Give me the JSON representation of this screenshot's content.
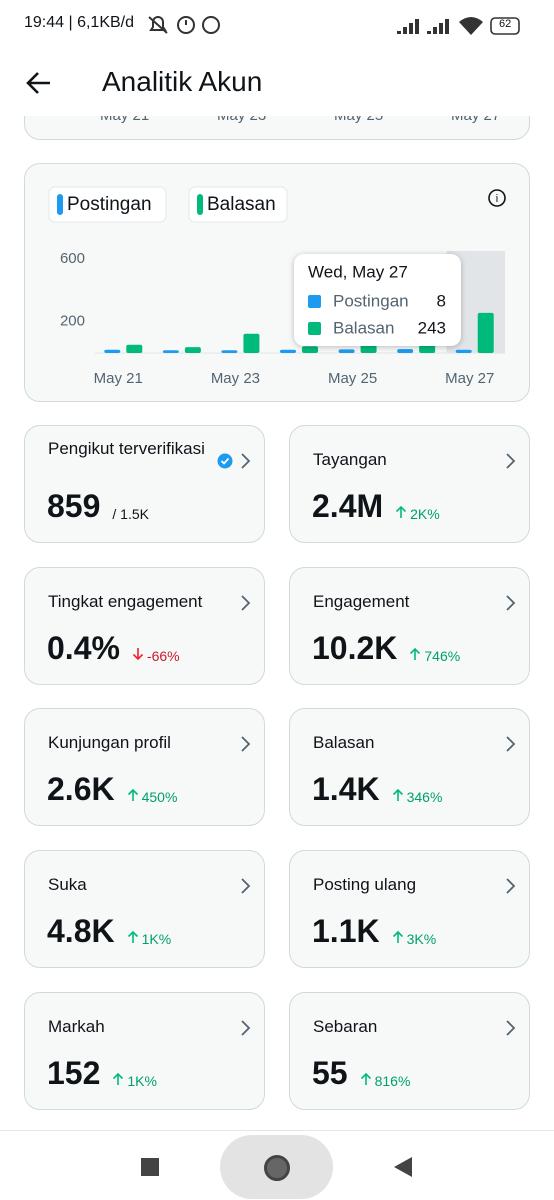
{
  "status_bar": {
    "time": "19:44 | 6,1KB/d",
    "battery": "62"
  },
  "header": {
    "title": "Analitik Akun"
  },
  "top_card": {
    "dates": [
      "May 21",
      "May 23",
      "May 25",
      "May 27"
    ]
  },
  "chart_data": {
    "type": "bar",
    "categories": [
      "May 21",
      null,
      "May 23",
      null,
      "May 25",
      null,
      "May 27"
    ],
    "series": [
      {
        "name": "Postingan",
        "color": "#1d9bf0",
        "values": [
          8,
          5,
          5,
          8,
          10,
          12,
          8
        ]
      },
      {
        "name": "Balasan",
        "color": "#00ba7c",
        "values": [
          40,
          25,
          110,
          30,
          40,
          45,
          243
        ]
      }
    ],
    "ylim": [
      0,
      650
    ],
    "yticks": [
      200,
      600
    ],
    "tooltip": {
      "title": "Wed, May 27",
      "index": 6
    }
  },
  "cards": [
    {
      "label": "Pengikut terverifikasi",
      "value": "859",
      "sub": "/ 1.5K",
      "verified": true
    },
    {
      "label": "Tayangan",
      "value": "2.4M",
      "change": "2K%",
      "direction": "up"
    },
    {
      "label": "Tingkat engagement",
      "value": "0.4%",
      "change": "-66%",
      "direction": "down"
    },
    {
      "label": "Engagement",
      "value": "10.2K",
      "change": "746%",
      "direction": "up"
    },
    {
      "label": "Kunjungan profil",
      "value": "2.6K",
      "change": "450%",
      "direction": "up"
    },
    {
      "label": "Balasan",
      "value": "1.4K",
      "change": "346%",
      "direction": "up"
    },
    {
      "label": "Suka",
      "value": "4.8K",
      "change": "1K%",
      "direction": "up"
    },
    {
      "label": "Posting ulang",
      "value": "1.1K",
      "change": "3K%",
      "direction": "up"
    },
    {
      "label": "Markah",
      "value": "152",
      "change": "1K%",
      "direction": "up"
    },
    {
      "label": "Sebaran",
      "value": "55",
      "change": "816%",
      "direction": "up"
    }
  ]
}
